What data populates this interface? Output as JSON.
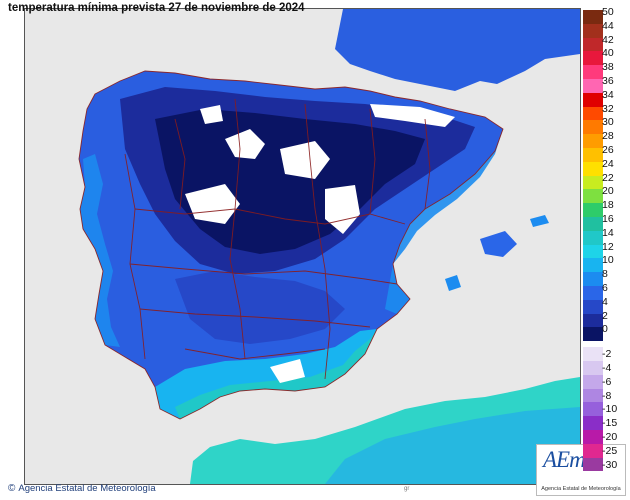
{
  "map": {
    "title": "temperatura mínima prevista 27 de noviembre de 2024",
    "credit": "Agencia Estatal de Meteorología",
    "credit_symbol": "©",
    "logo_text": "AEmet",
    "logo_subtitle": "Agencia Estatal de Meteorología",
    "colors": {
      "sea": "#e8e8e8",
      "land_france": "#2a5fe0",
      "land_africa": "#2fd4c8",
      "borders": "#8a1c1c"
    }
  },
  "legend": {
    "positive": [
      {
        "label": "50",
        "color": "#7a2a10"
      },
      {
        "label": "44",
        "color": "#a2301c"
      },
      {
        "label": "42",
        "color": "#c0282a"
      },
      {
        "label": "40",
        "color": "#e8183c"
      },
      {
        "label": "38",
        "color": "#ff3a7c"
      },
      {
        "label": "36",
        "color": "#ff66b2"
      },
      {
        "label": "34",
        "color": "#e00000"
      },
      {
        "label": "32",
        "color": "#ff4a00"
      },
      {
        "label": "30",
        "color": "#ff7a00"
      },
      {
        "label": "28",
        "color": "#ff9c00"
      },
      {
        "label": "26",
        "color": "#ffc000"
      },
      {
        "label": "24",
        "color": "#ffe000"
      },
      {
        "label": "22",
        "color": "#c8ec20"
      },
      {
        "label": "20",
        "color": "#7ee040"
      },
      {
        "label": "18",
        "color": "#2ecc6a"
      },
      {
        "label": "16",
        "color": "#20c0a0"
      },
      {
        "label": "14",
        "color": "#20c8c8"
      },
      {
        "label": "12",
        "color": "#1ed4e8"
      },
      {
        "label": "10",
        "color": "#18b4f0"
      },
      {
        "label": "8",
        "color": "#1c8cf0"
      },
      {
        "label": "6",
        "color": "#2a66e8"
      },
      {
        "label": "4",
        "color": "#2648c8"
      },
      {
        "label": "2",
        "color": "#1c2c9c"
      },
      {
        "label": "0",
        "color": "#0a1464"
      }
    ],
    "negative": [
      {
        "label": "-2",
        "color": "#eae2f6"
      },
      {
        "label": "-4",
        "color": "#d8c8f0"
      },
      {
        "label": "-6",
        "color": "#c4a8ea"
      },
      {
        "label": "-8",
        "color": "#ae86e2"
      },
      {
        "label": "-10",
        "color": "#9660dc"
      },
      {
        "label": "-15",
        "color": "#8a2ec8"
      },
      {
        "label": "-20",
        "color": "#b81aa8"
      },
      {
        "label": "-25",
        "color": "#e02890"
      },
      {
        "label": "-30",
        "color": "#9a3aa0"
      }
    ]
  },
  "bottom_mark": "gr"
}
